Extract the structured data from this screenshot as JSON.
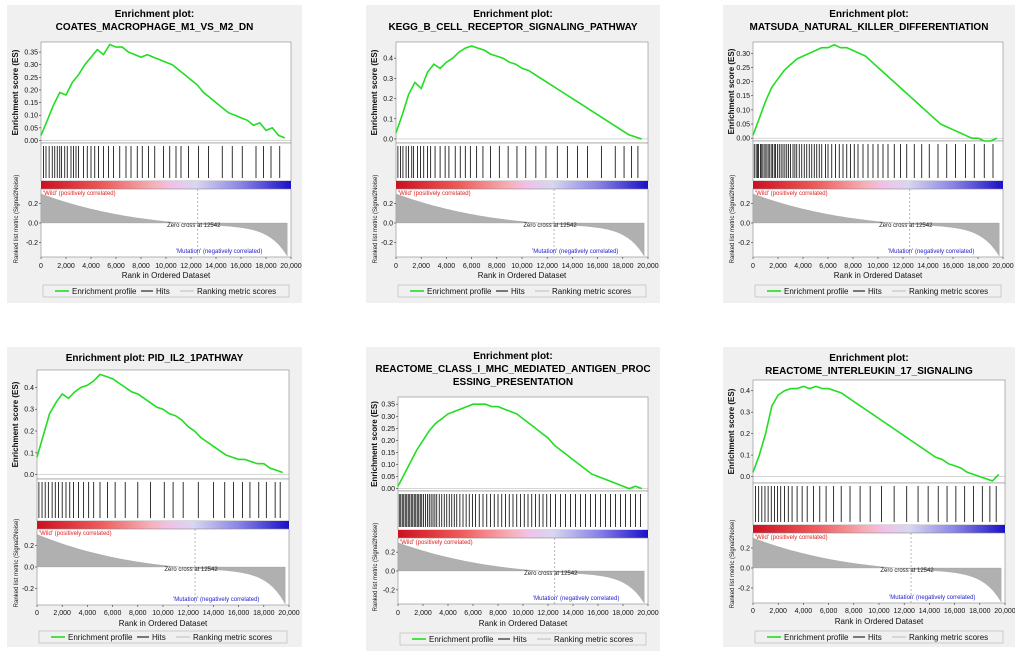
{
  "chart_data": [
    {
      "type": "line",
      "title_prefix": "Enrichment plot:",
      "title_lines": [
        "COATES_MACROPHAGE_M1_VS_M2_DN"
      ],
      "ylabel": "Enrichment score (ES)",
      "ylabel_bottom": "Ranked list metric (Signal2Noise)",
      "xlabel": "Rank in Ordered Dataset",
      "es_yticks": [
        "0.00",
        "0.05",
        "0.10",
        "0.15",
        "0.20",
        "0.25",
        "0.30",
        "0.35"
      ],
      "es_ylim": [
        -0.01,
        0.39
      ],
      "es_curve": {
        "x": [
          0,
          500,
          1000,
          1500,
          2000,
          2500,
          3000,
          3500,
          4000,
          4500,
          5000,
          5500,
          6000,
          6500,
          7000,
          7500,
          8000,
          8500,
          9000,
          9500,
          10000,
          10500,
          11000,
          11500,
          12000,
          12500,
          13000,
          13500,
          14000,
          14500,
          15000,
          15500,
          16000,
          16500,
          17000,
          17500,
          18000,
          18500,
          19000,
          19500
        ],
        "y": [
          0.02,
          0.08,
          0.14,
          0.19,
          0.18,
          0.23,
          0.26,
          0.3,
          0.33,
          0.36,
          0.34,
          0.38,
          0.37,
          0.37,
          0.35,
          0.34,
          0.33,
          0.34,
          0.33,
          0.32,
          0.31,
          0.3,
          0.28,
          0.26,
          0.24,
          0.22,
          0.19,
          0.17,
          0.15,
          0.13,
          0.11,
          0.1,
          0.09,
          0.08,
          0.06,
          0.07,
          0.04,
          0.05,
          0.02,
          0.01
        ]
      },
      "hits": [
        200,
        400,
        650,
        900,
        1100,
        1300,
        1500,
        1650,
        1900,
        2100,
        2400,
        2600,
        2800,
        3000,
        3400,
        3700,
        4000,
        4300,
        4600,
        5000,
        5400,
        5800,
        6300,
        6800,
        7200,
        7700,
        8100,
        8600,
        9100,
        9800,
        10300,
        10800,
        11200,
        11800,
        12600,
        13400,
        14500,
        15300,
        16100,
        17200,
        17800,
        18400,
        19100
      ],
      "bottom_yticks": [
        "0.2",
        "0.0",
        "-0.2"
      ],
      "bottom_ylim": [
        -0.35,
        0.35
      ],
      "xticks": [
        "0",
        "2,000",
        "4,000",
        "6,000",
        "8,000",
        "10,000",
        "12,000",
        "14,000",
        "16,000",
        "18,000",
        "20,000"
      ],
      "wild_label": "'Wild' (positively correlated)",
      "mutation_label": "'Mutation' (negatively correlated)",
      "zero_cross_label": "Zero cross at 12542",
      "legend": [
        "Enrichment profile",
        "Hits",
        "Ranking metric scores"
      ]
    },
    {
      "type": "line",
      "title_prefix": "Enrichment plot:",
      "title_lines": [
        "KEGG_B_CELL_RECEPTOR_SIGNALING_PATHWAY"
      ],
      "ylabel": "Enrichment score (ES)",
      "ylabel_bottom": "Ranked list metric (Signal2Noise)",
      "xlabel": "Rank in Ordered Dataset",
      "es_yticks": [
        "0.0",
        "0.1",
        "0.2",
        "0.3",
        "0.4"
      ],
      "es_ylim": [
        -0.02,
        0.48
      ],
      "es_curve": {
        "x": [
          0,
          500,
          1000,
          1500,
          2000,
          2500,
          3000,
          3500,
          4000,
          4500,
          5000,
          5500,
          6000,
          6500,
          7000,
          7500,
          8000,
          8500,
          9000,
          9500,
          10000,
          10500,
          11000,
          11500,
          12000,
          12500,
          13000,
          13500,
          14000,
          14500,
          15000,
          15500,
          16000,
          16500,
          17000,
          17500,
          18000,
          18500,
          19000,
          19500
        ],
        "y": [
          0.03,
          0.12,
          0.22,
          0.28,
          0.25,
          0.33,
          0.37,
          0.35,
          0.38,
          0.4,
          0.43,
          0.45,
          0.46,
          0.45,
          0.44,
          0.42,
          0.41,
          0.4,
          0.38,
          0.37,
          0.35,
          0.34,
          0.32,
          0.3,
          0.28,
          0.26,
          0.24,
          0.22,
          0.2,
          0.18,
          0.16,
          0.14,
          0.12,
          0.1,
          0.08,
          0.06,
          0.04,
          0.02,
          0.01,
          0.0
        ]
      },
      "hits": [
        150,
        350,
        550,
        800,
        1000,
        1250,
        1400,
        1700,
        1950,
        2200,
        2500,
        2750,
        3100,
        3500,
        3900,
        4200,
        4700,
        5100,
        5500,
        5900,
        6400,
        6900,
        7500,
        8200,
        8900,
        9600,
        10300,
        11100,
        11900,
        12800,
        13600,
        14400,
        15200,
        16300,
        17400,
        18100,
        18700,
        19200
      ],
      "bottom_yticks": [
        "0.2",
        "0.0",
        "-0.2"
      ],
      "bottom_ylim": [
        -0.35,
        0.35
      ],
      "xticks": [
        "0",
        "2,000",
        "4,000",
        "6,000",
        "8,000",
        "10,000",
        "12,000",
        "14,000",
        "16,000",
        "18,000",
        "20,000"
      ],
      "wild_label": "'Wild' (positively correlated)",
      "mutation_label": "'Mutation' (negatively correlated)",
      "zero_cross_label": "Zero cross at 12542",
      "legend": [
        "Enrichment profile",
        "Hits",
        "Ranking metric scores"
      ]
    },
    {
      "type": "line",
      "title_prefix": "Enrichment plot:",
      "title_lines": [
        "MATSUDA_NATURAL_KILLER_DIFFERENTIATION"
      ],
      "ylabel": "Enrichment score (ES)",
      "ylabel_bottom": "Ranked list metric (Signal2Noise)",
      "xlabel": "Rank in Ordered Dataset",
      "es_yticks": [
        "0.00",
        "0.05",
        "0.10",
        "0.15",
        "0.20",
        "0.25",
        "0.30"
      ],
      "es_ylim": [
        -0.01,
        0.34
      ],
      "es_curve": {
        "x": [
          0,
          500,
          1000,
          1500,
          2000,
          2500,
          3000,
          3500,
          4000,
          4500,
          5000,
          5500,
          6000,
          6500,
          7000,
          7500,
          8000,
          8500,
          9000,
          9500,
          10000,
          10500,
          11000,
          11500,
          12000,
          12500,
          13000,
          13500,
          14000,
          14500,
          15000,
          15500,
          16000,
          16500,
          17000,
          17500,
          18000,
          18500,
          19000,
          19500
        ],
        "y": [
          0.01,
          0.07,
          0.13,
          0.18,
          0.21,
          0.24,
          0.26,
          0.28,
          0.29,
          0.3,
          0.31,
          0.32,
          0.32,
          0.33,
          0.32,
          0.32,
          0.31,
          0.3,
          0.29,
          0.27,
          0.25,
          0.23,
          0.21,
          0.19,
          0.17,
          0.15,
          0.13,
          0.11,
          0.09,
          0.07,
          0.05,
          0.04,
          0.03,
          0.02,
          0.01,
          0.0,
          0.0,
          -0.01,
          -0.01,
          0.0
        ]
      },
      "hits": [
        100,
        250,
        350,
        450,
        600,
        700,
        800,
        950,
        1050,
        1200,
        1300,
        1450,
        1550,
        1700,
        1800,
        1950,
        2100,
        2250,
        2400,
        2550,
        2700,
        2850,
        3000,
        3200,
        3350,
        3500,
        3700,
        3900,
        4100,
        4300,
        4500,
        4700,
        4900,
        5100,
        5300,
        5500,
        5800,
        6000,
        6300,
        6600,
        6900,
        7200,
        7500,
        7800,
        8100,
        8400,
        8800,
        9200,
        9600,
        10000,
        10400,
        10800,
        11300,
        11800,
        12300,
        12900,
        13500,
        14100,
        14800,
        15500,
        16200,
        17000,
        17700,
        18500,
        19200
      ],
      "bottom_yticks": [
        "0.2",
        "0.0",
        "-0.2"
      ],
      "bottom_ylim": [
        -0.35,
        0.35
      ],
      "xticks": [
        "0",
        "2,000",
        "4,000",
        "6,000",
        "8,000",
        "10,000",
        "12,000",
        "14,000",
        "16,000",
        "18,000",
        "20,000"
      ],
      "wild_label": "'Wild' (positively correlated)",
      "mutation_label": "'Mutation' (negatively correlated)",
      "zero_cross_label": "Zero cross at 12542",
      "legend": [
        "Enrichment profile",
        "Hits",
        "Ranking metric scores"
      ]
    },
    {
      "type": "line",
      "title_prefix": "Enrichment plot: PID_IL2_1PATHWAY",
      "title_lines": [],
      "ylabel": "Enrichment score (ES)",
      "ylabel_bottom": "Ranked list metric (Signal2Noise)",
      "xlabel": "Rank in Ordered Dataset",
      "es_yticks": [
        "0.0",
        "0.1",
        "0.2",
        "0.3",
        "0.4"
      ],
      "es_ylim": [
        -0.02,
        0.48
      ],
      "es_curve": {
        "x": [
          0,
          500,
          1000,
          1500,
          2000,
          2500,
          3000,
          3500,
          4000,
          4500,
          5000,
          5500,
          6000,
          6500,
          7000,
          7500,
          8000,
          8500,
          9000,
          9500,
          10000,
          10500,
          11000,
          11500,
          12000,
          12500,
          13000,
          13500,
          14000,
          14500,
          15000,
          15500,
          16000,
          16500,
          17000,
          17500,
          18000,
          18500,
          19000,
          19500
        ],
        "y": [
          0.08,
          0.18,
          0.28,
          0.33,
          0.37,
          0.35,
          0.38,
          0.4,
          0.41,
          0.43,
          0.46,
          0.45,
          0.44,
          0.42,
          0.4,
          0.38,
          0.37,
          0.35,
          0.33,
          0.31,
          0.3,
          0.28,
          0.27,
          0.25,
          0.22,
          0.2,
          0.17,
          0.15,
          0.13,
          0.11,
          0.09,
          0.08,
          0.07,
          0.07,
          0.06,
          0.05,
          0.05,
          0.03,
          0.02,
          0.01
        ]
      },
      "hits": [
        150,
        400,
        650,
        900,
        1200,
        1450,
        1700,
        2000,
        2300,
        2600,
        2900,
        3300,
        3700,
        4100,
        4500,
        5000,
        5600,
        6200,
        7000,
        8000,
        9000,
        10100,
        10800,
        11600,
        12800,
        14000,
        14900,
        15600,
        16300,
        16900,
        17600,
        18200,
        18900,
        19300
      ],
      "bottom_yticks": [
        "0.2",
        "0.0",
        "-0.2"
      ],
      "bottom_ylim": [
        -0.35,
        0.35
      ],
      "xticks": [
        "0",
        "2,000",
        "4,000",
        "6,000",
        "8,000",
        "10,000",
        "12,000",
        "14,000",
        "16,000",
        "18,000",
        "20,000"
      ],
      "wild_label": "'Wild' (positively correlated)",
      "mutation_label": "'Mutation' (negatively correlated)",
      "zero_cross_label": "Zero cross at 12542",
      "legend": [
        "Enrichment profile",
        "Hits",
        "Ranking metric scores"
      ]
    },
    {
      "type": "line",
      "title_prefix": "Enrichment plot:",
      "title_lines": [
        "REACTOME_CLASS_I_MHC_MEDIATED_ANTIGEN_PROC",
        "ESSING_PRESENTATION"
      ],
      "ylabel": "Enrichment score (ES)",
      "ylabel_bottom": "Ranked list metric (Signal2Noise)",
      "xlabel": "Rank in Ordered Dataset",
      "es_yticks": [
        "0.00",
        "0.05",
        "0.10",
        "0.15",
        "0.20",
        "0.25",
        "0.30",
        "0.35"
      ],
      "es_ylim": [
        -0.01,
        0.38
      ],
      "es_curve": {
        "x": [
          0,
          500,
          1000,
          1500,
          2000,
          2500,
          3000,
          3500,
          4000,
          4500,
          5000,
          5500,
          6000,
          6500,
          7000,
          7500,
          8000,
          8500,
          9000,
          9500,
          10000,
          10500,
          11000,
          11500,
          12000,
          12500,
          13000,
          13500,
          14000,
          14500,
          15000,
          15500,
          16000,
          16500,
          17000,
          17500,
          18000,
          18500,
          19000,
          19500
        ],
        "y": [
          0.01,
          0.06,
          0.11,
          0.16,
          0.2,
          0.24,
          0.27,
          0.29,
          0.31,
          0.32,
          0.33,
          0.34,
          0.35,
          0.35,
          0.35,
          0.34,
          0.34,
          0.33,
          0.32,
          0.31,
          0.29,
          0.27,
          0.25,
          0.23,
          0.21,
          0.18,
          0.16,
          0.14,
          0.12,
          0.1,
          0.08,
          0.06,
          0.05,
          0.04,
          0.03,
          0.02,
          0.01,
          0.0,
          0.01,
          0.0
        ]
      },
      "hits": [
        100,
        220,
        340,
        460,
        580,
        700,
        820,
        940,
        1060,
        1180,
        1300,
        1420,
        1540,
        1660,
        1780,
        1900,
        2050,
        2200,
        2350,
        2500,
        2650,
        2800,
        2950,
        3100,
        3300,
        3500,
        3700,
        3900,
        4100,
        4300,
        4500,
        4700,
        4950,
        5200,
        5450,
        5700,
        5950,
        6200,
        6500,
        6800,
        7100,
        7400,
        7700,
        8000,
        8300,
        8600,
        8900,
        9200,
        9500,
        9800,
        10100,
        10400,
        10700,
        11000,
        11300,
        11600,
        11900,
        12200,
        12600,
        13000,
        13400,
        13800,
        14200,
        14600,
        15000,
        15400,
        15800,
        16200,
        16600,
        17000,
        17400,
        17800,
        18200,
        18600,
        19000,
        19400
      ],
      "bottom_yticks": [
        "0.2",
        "0.0",
        "-0.2"
      ],
      "bottom_ylim": [
        -0.35,
        0.35
      ],
      "xticks": [
        "0",
        "2,000",
        "4,000",
        "6,000",
        "8,000",
        "10,000",
        "12,000",
        "14,000",
        "16,000",
        "18,000",
        "20,000"
      ],
      "wild_label": "'Wild' (positively correlated)",
      "mutation_label": "'Mutation' (negatively correlated)",
      "zero_cross_label": "Zero cross at 12542",
      "legend": [
        "Enrichment profile",
        "Hits",
        "Ranking metric scores"
      ]
    },
    {
      "type": "line",
      "title_prefix": "Enrichment plot:",
      "title_lines": [
        "REACTOME_INTERLEUKIN_17_SIGNALING"
      ],
      "ylabel": "Enrichment score (ES)",
      "ylabel_bottom": "Ranked list metric (Signal2Noise)",
      "xlabel": "Rank in Ordered Dataset",
      "es_yticks": [
        "0.0",
        "0.1",
        "0.2",
        "0.3",
        "0.4"
      ],
      "es_ylim": [
        -0.03,
        0.45
      ],
      "es_curve": {
        "x": [
          0,
          500,
          1000,
          1500,
          2000,
          2500,
          3000,
          3500,
          4000,
          4500,
          5000,
          5500,
          6000,
          6500,
          7000,
          7500,
          8000,
          8500,
          9000,
          9500,
          10000,
          10500,
          11000,
          11500,
          12000,
          12500,
          13000,
          13500,
          14000,
          14500,
          15000,
          15500,
          16000,
          16500,
          17000,
          17500,
          18000,
          18500,
          19000,
          19500
        ],
        "y": [
          0.02,
          0.1,
          0.2,
          0.33,
          0.38,
          0.4,
          0.41,
          0.41,
          0.42,
          0.41,
          0.42,
          0.41,
          0.41,
          0.4,
          0.39,
          0.37,
          0.35,
          0.33,
          0.31,
          0.29,
          0.27,
          0.25,
          0.23,
          0.21,
          0.19,
          0.17,
          0.15,
          0.13,
          0.11,
          0.09,
          0.08,
          0.06,
          0.05,
          0.04,
          0.02,
          0.01,
          0.0,
          -0.01,
          -0.02,
          0.01
        ]
      },
      "hits": [
        200,
        450,
        700,
        950,
        1200,
        1450,
        1700,
        1950,
        2200,
        2500,
        2800,
        3100,
        3500,
        3900,
        4300,
        4800,
        5300,
        5800,
        6400,
        7000,
        7700,
        8500,
        9300,
        10200,
        11200,
        12200,
        13100,
        13900,
        14700,
        15400,
        16100,
        16800,
        17500,
        18200,
        18800,
        19300
      ],
      "bottom_yticks": [
        "0.2",
        "0.0",
        "-0.2"
      ],
      "bottom_ylim": [
        -0.35,
        0.35
      ],
      "xticks": [
        "0",
        "2,000",
        "4,000",
        "6,000",
        "8,000",
        "10,000",
        "12,000",
        "14,000",
        "16,000",
        "18,000",
        "20,000"
      ],
      "wild_label": "'Wild' (positively correlated)",
      "mutation_label": "'Mutation' (negatively correlated)",
      "zero_cross_label": "Zero cross at 12542",
      "legend": [
        "Enrichment profile",
        "Hits",
        "Ranking metric scores"
      ]
    }
  ],
  "colors": {
    "es_line": "#22dd22",
    "hit_line": "#000000",
    "metric_fill": "#b0b0b0",
    "wild_text": "#dd2222",
    "mutation_text": "#2222cc",
    "heat_red": "#e8303a",
    "heat_blue": "#2a1fd0"
  }
}
